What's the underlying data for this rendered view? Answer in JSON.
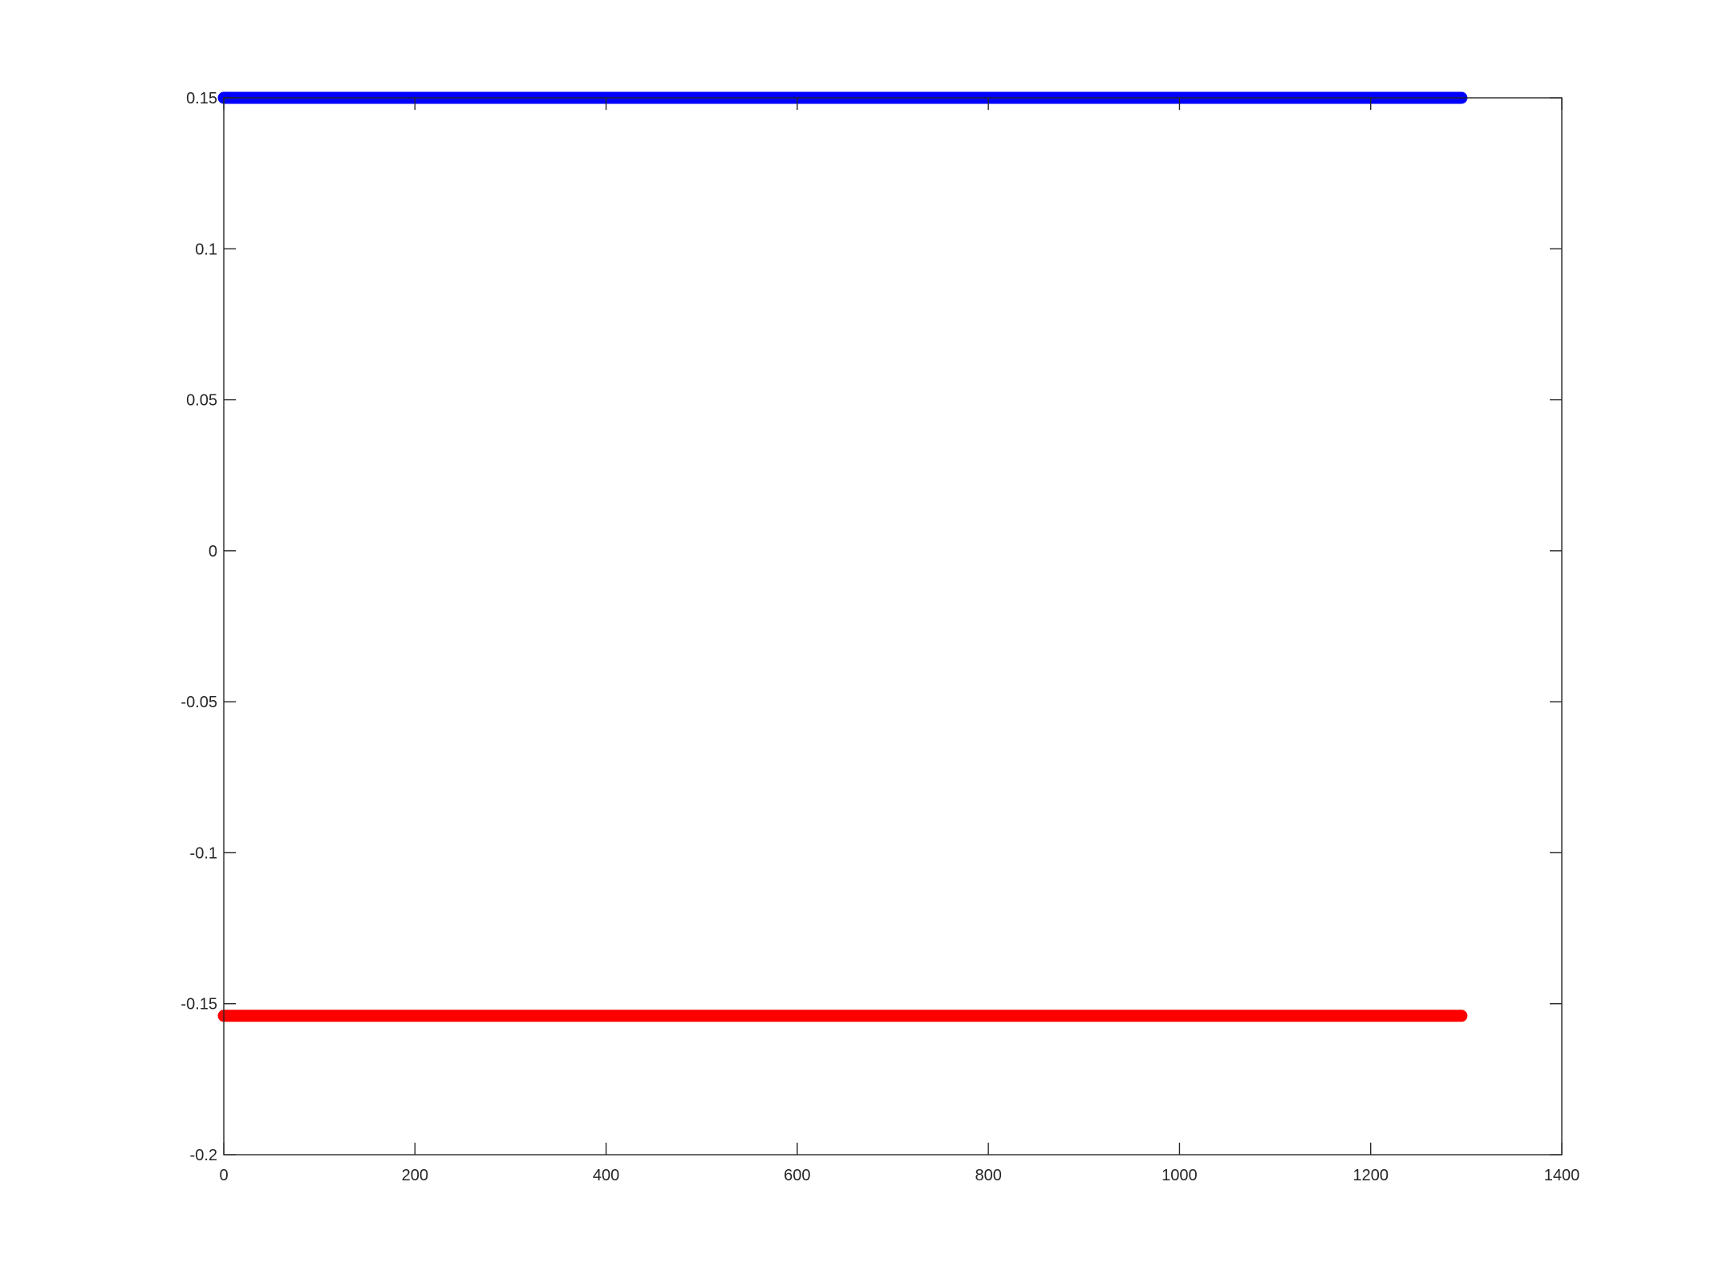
{
  "chart_data": {
    "type": "line",
    "title": "",
    "xlabel": "",
    "ylabel": "",
    "xlim": [
      0,
      1400
    ],
    "ylim": [
      -0.2,
      0.15
    ],
    "x_ticks": [
      0,
      200,
      400,
      600,
      800,
      1000,
      1200,
      1400
    ],
    "x_tick_labels": [
      "0",
      "200",
      "400",
      "600",
      "800",
      "1000",
      "1200",
      "1400"
    ],
    "y_ticks": [
      -0.2,
      -0.15,
      -0.1,
      -0.05,
      0,
      0.05,
      0.1,
      0.15
    ],
    "y_tick_labels": [
      "-0.2",
      "-0.15",
      "-0.1",
      "-0.05",
      "0",
      "0.05",
      "0.1",
      "0.15"
    ],
    "grid": false,
    "legend": false,
    "series": [
      {
        "color": "#0000ff",
        "x": [
          0,
          1295
        ],
        "y": [
          0.15,
          0.15
        ]
      },
      {
        "color": "#ff0000",
        "x": [
          0,
          1295
        ],
        "y": [
          -0.154,
          -0.154
        ]
      }
    ]
  }
}
